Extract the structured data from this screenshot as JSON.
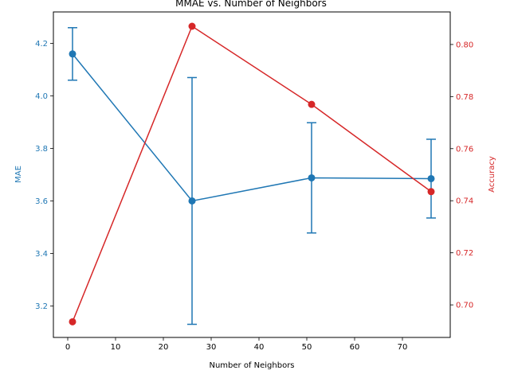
{
  "chart_data": {
    "type": "line",
    "title": "MMAE vs. Number of Neighbors",
    "xlabel": "Number of Neighbors",
    "ylabel_left": "MAE",
    "ylabel_right": "Accuracy",
    "x": [
      1,
      26,
      51,
      76
    ],
    "xlim": [
      -3,
      80
    ],
    "xticks": [
      0,
      10,
      20,
      30,
      40,
      50,
      60,
      70
    ],
    "ylim_left": [
      3.08,
      4.32
    ],
    "yticks_left": [
      3.2,
      3.4,
      3.6,
      3.8,
      4.0,
      4.2
    ],
    "ylim_right": [
      0.6875,
      0.8125
    ],
    "yticks_right": [
      0.7,
      0.72,
      0.74,
      0.76,
      0.78,
      0.8
    ],
    "grid": false,
    "series": [
      {
        "name": "MAE",
        "axis": "left",
        "color": "#1f77b4",
        "values": [
          4.16,
          3.6,
          3.688,
          3.685
        ],
        "error": [
          0.1,
          0.47,
          0.21,
          0.15
        ],
        "marker": "circle"
      },
      {
        "name": "Accuracy",
        "axis": "right",
        "color": "#d62728",
        "values": [
          0.6935,
          0.807,
          0.777,
          0.7435
        ],
        "marker": "circle"
      }
    ]
  }
}
